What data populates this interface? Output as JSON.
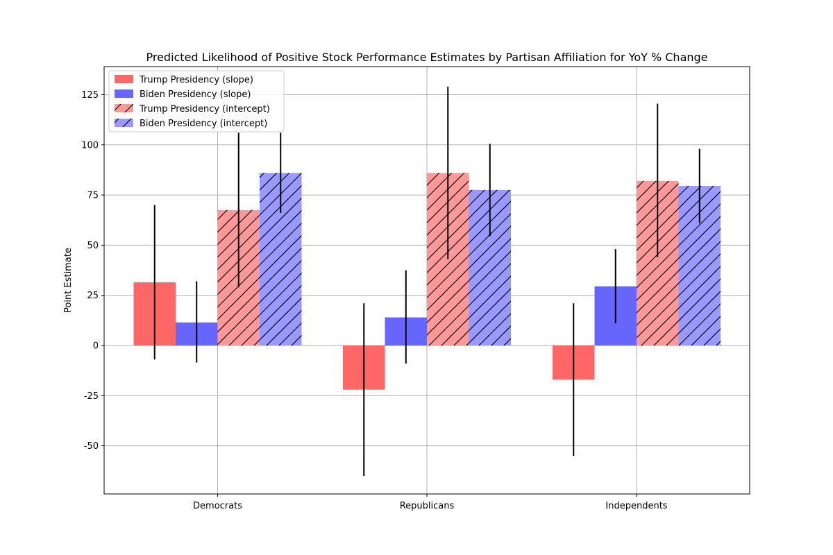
{
  "chart_data": {
    "type": "bar",
    "title": "Predicted Likelihood of Positive Stock Performance Estimates by Partisan Affiliation for YoY % Change",
    "xlabel": "",
    "ylabel": "Point Estimate",
    "categories": [
      "Democrats",
      "Republicans",
      "Independents"
    ],
    "ylim": [
      -74,
      139
    ],
    "yticks": [
      -50,
      -25,
      0,
      25,
      50,
      75,
      100,
      125
    ],
    "grid": true,
    "legend_position": "top-left",
    "series": [
      {
        "name": "Trump Presidency (slope)",
        "color": "#ff6666",
        "hatch": false,
        "values": [
          31.5,
          -22,
          -17
        ],
        "err_low": [
          -7,
          -65,
          -55
        ],
        "err_high": [
          70,
          21,
          21
        ]
      },
      {
        "name": "Biden Presidency (slope)",
        "color": "#6666ff",
        "hatch": false,
        "values": [
          11.5,
          14,
          29.5
        ],
        "err_low": [
          -8.5,
          -9,
          11
        ],
        "err_high": [
          32,
          37.5,
          48
        ]
      },
      {
        "name": "Trump Presidency (intercept)",
        "color": "#ff9999",
        "hatch": true,
        "values": [
          67.5,
          86,
          82
        ],
        "err_low": [
          29,
          43,
          44
        ],
        "err_high": [
          106,
          129,
          120.5
        ]
      },
      {
        "name": "Biden Presidency (intercept)",
        "color": "#9999ff",
        "hatch": true,
        "values": [
          86,
          77.5,
          79.5
        ],
        "err_low": [
          66,
          54.5,
          61
        ],
        "err_high": [
          106,
          100.5,
          98
        ]
      }
    ]
  }
}
